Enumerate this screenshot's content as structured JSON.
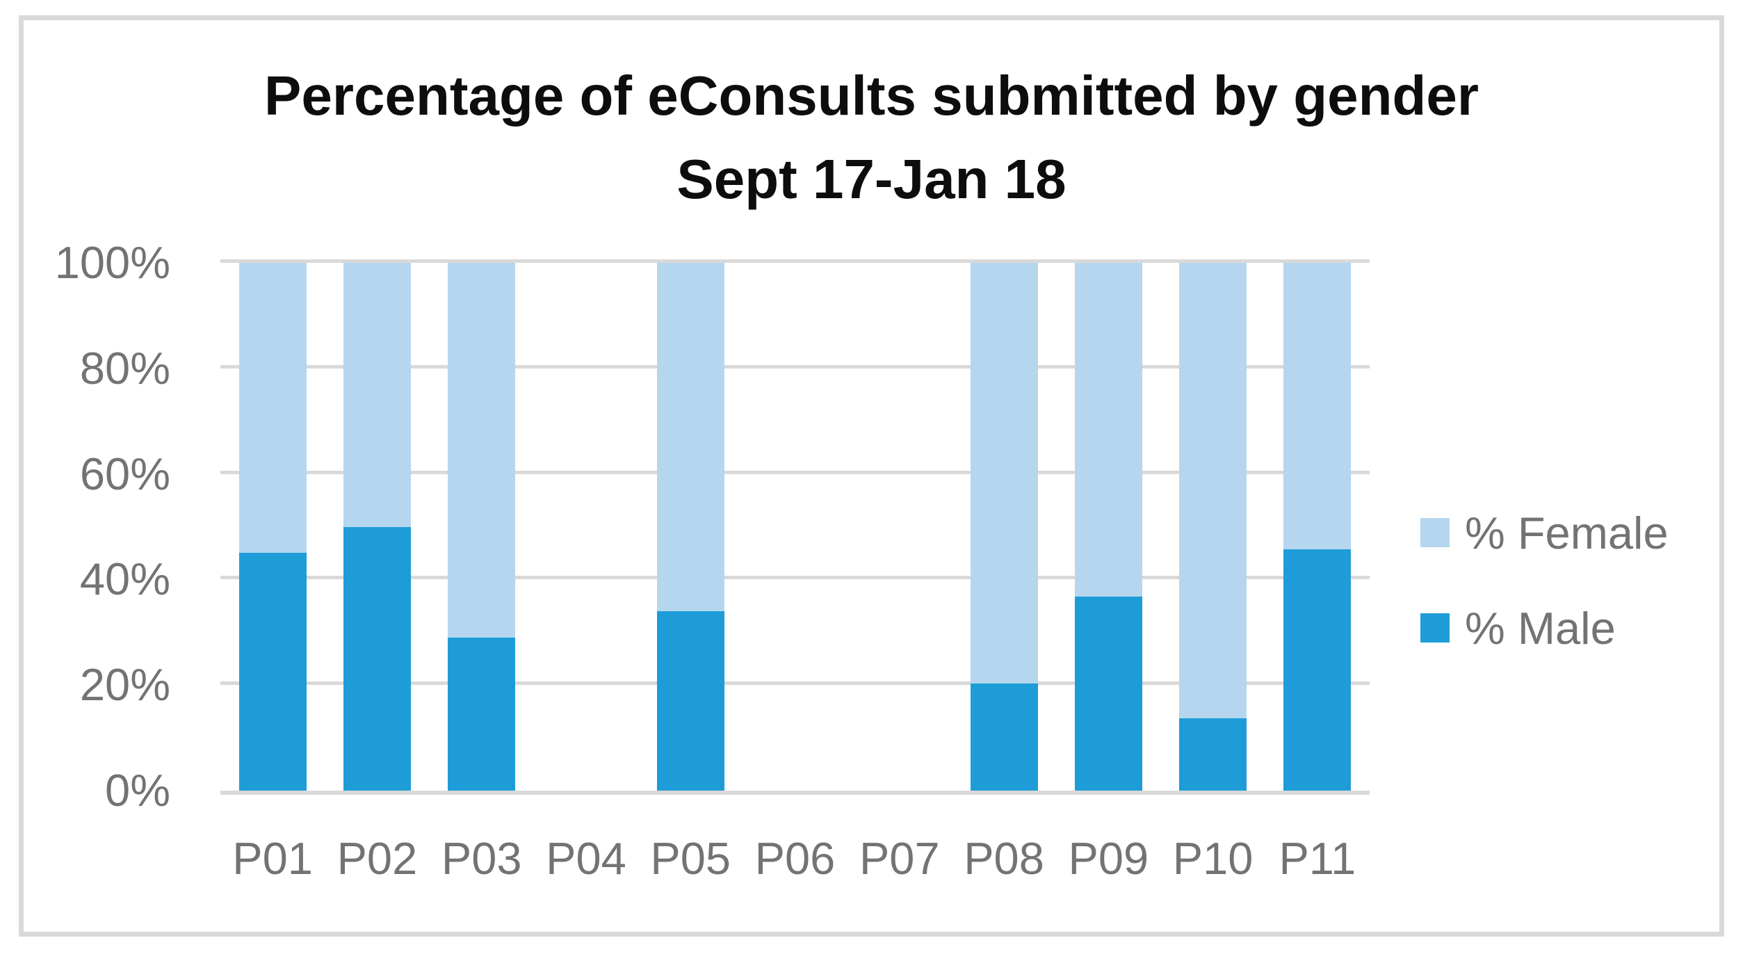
{
  "window": {
    "background": "#FFFFFF",
    "frame_border_color": "#D9D9D9"
  },
  "chart_data": {
    "type": "bar",
    "stacked": true,
    "percent_stacked": true,
    "title": "Percentage of eConsults submitted by gender",
    "subtitle": "Sept 17-Jan 18",
    "categories": [
      "P01",
      "P02",
      "P03",
      "P04",
      "P05",
      "P06",
      "P07",
      "P08",
      "P09",
      "P10",
      "P11"
    ],
    "series": [
      {
        "name": "% Female",
        "color": "#B5D6EE",
        "values": [
          55,
          50,
          71,
          null,
          66,
          null,
          null,
          79.7,
          63.3,
          86.3,
          54.3
        ]
      },
      {
        "name": "% Male",
        "color": "#1E9CD8",
        "values": [
          45,
          50,
          29,
          null,
          34,
          null,
          null,
          20.3,
          36.7,
          13.7,
          45.7
        ]
      }
    ],
    "xlabel": "",
    "ylabel": "",
    "ylim": [
      0,
      100
    ],
    "ytick_step": 20,
    "ytick_labels": [
      "0%",
      "20%",
      "40%",
      "60%",
      "80%",
      "100%"
    ],
    "grid": true,
    "gridline_color": "#D9D9D9",
    "axis_text_color": "#737373",
    "title_color": "#0D0D0D",
    "legend_position": "right",
    "legend_entries": [
      "% Female",
      "% Male"
    ],
    "notes": "Categories P04, P06 and P07 have no bars (no data)."
  }
}
